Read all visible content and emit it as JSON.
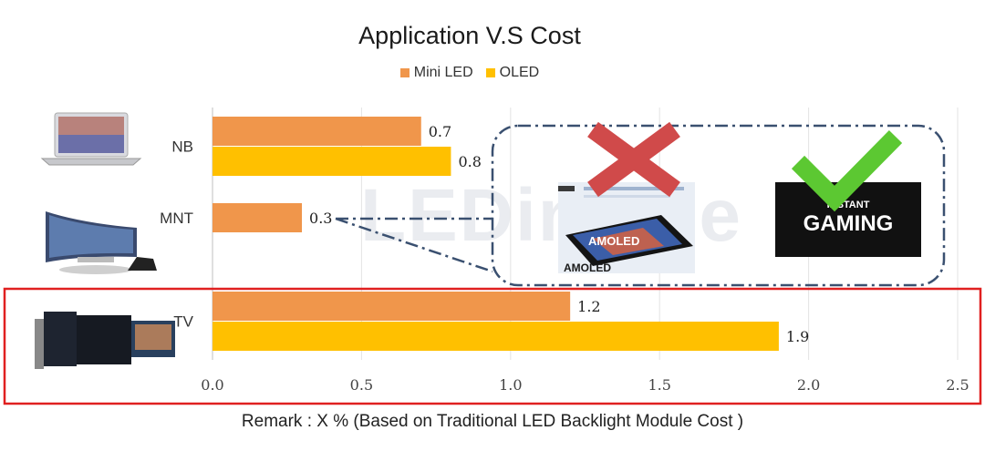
{
  "chart_data": {
    "type": "bar",
    "title": "Application V.S Cost",
    "categories": [
      "NB",
      "MNT",
      "TV"
    ],
    "series": [
      {
        "name": "Mini LED",
        "color": "#F0964B",
        "values": [
          0.7,
          0.3,
          1.2
        ]
      },
      {
        "name": "OLED",
        "color": "#FFC000",
        "values": [
          0.8,
          null,
          1.9
        ]
      }
    ],
    "xlim": [
      0,
      2.5
    ],
    "ticks": [
      "0.0",
      "0.5",
      "1.0",
      "1.5",
      "2.0",
      "2.5"
    ],
    "tick_values": [
      0,
      0.5,
      1.0,
      1.5,
      2.0,
      2.5
    ],
    "orientation": "horizontal",
    "remark": "Remark : X % (Based on Traditional LED Backlight  Module Cost )",
    "annotations": {
      "callout_rejected": "AMOLED",
      "callout_accepted_line1": "INSTANT",
      "callout_accepted_line2": "GAMING",
      "highlight": "TV"
    },
    "watermark": "LEDinside"
  },
  "colors": {
    "highlight_border": "#E02020",
    "callout_border": "#3A5070",
    "cross": "#D04A4A",
    "check": "#5CC832"
  }
}
